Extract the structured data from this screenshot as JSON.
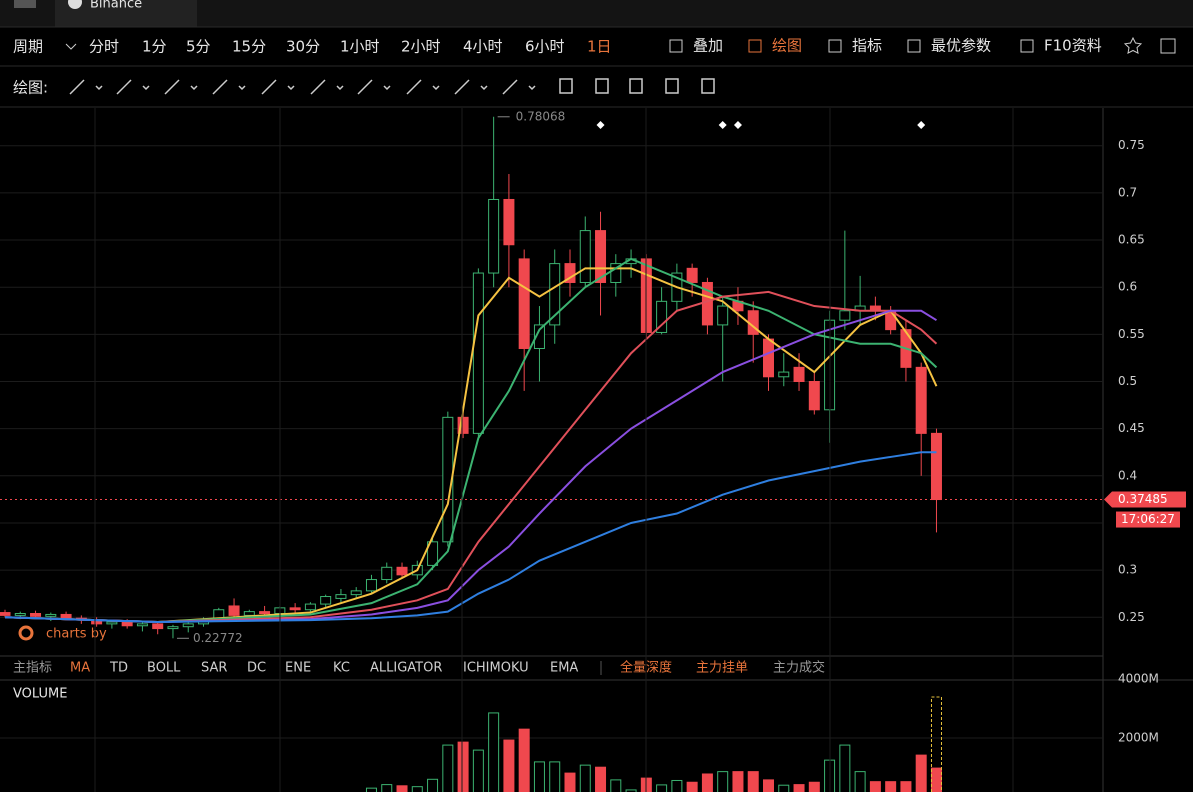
{
  "tab": {
    "name": "Binance"
  },
  "toolbar": {
    "period_label": "周期",
    "periods": [
      "分时",
      "1分",
      "5分",
      "15分",
      "30分",
      "1小时",
      "2小时",
      "4小时",
      "6小时",
      "1日"
    ],
    "tools": [
      "叠加",
      "绘图",
      "指标",
      "最优参数",
      "F10资料"
    ]
  },
  "drawing_bar": {
    "label": "绘图:"
  },
  "indicator_bar": {
    "items": [
      "主指标",
      "MA",
      "TD",
      "BOLL",
      "SAR",
      "DC",
      "ENE",
      "KC",
      "ALLIGATOR",
      "ICHIMOKU",
      "EMA",
      "全量深度",
      "主力挂单",
      "主力成交"
    ]
  },
  "watermark": "charts by",
  "chart_data": [
    {
      "type": "candlestick",
      "up_color": "#3cb371",
      "down_color": "#f0484e",
      "ylim": [
        0.21,
        0.79
      ],
      "yticks": [
        0.25,
        0.3,
        0.35,
        0.4,
        0.45,
        0.5,
        0.55,
        0.6,
        0.65,
        0.7,
        0.75
      ],
      "candles": [
        [
          0.255,
          0.258,
          0.25,
          0.252
        ],
        [
          0.252,
          0.256,
          0.248,
          0.254
        ],
        [
          0.254,
          0.257,
          0.249,
          0.251
        ],
        [
          0.251,
          0.255,
          0.246,
          0.253
        ],
        [
          0.253,
          0.256,
          0.247,
          0.249
        ],
        [
          0.249,
          0.252,
          0.243,
          0.247
        ],
        [
          0.247,
          0.25,
          0.24,
          0.243
        ],
        [
          0.243,
          0.247,
          0.238,
          0.245
        ],
        [
          0.245,
          0.248,
          0.238,
          0.241
        ],
        [
          0.241,
          0.245,
          0.235,
          0.243
        ],
        [
          0.243,
          0.246,
          0.232,
          0.238
        ],
        [
          0.238,
          0.242,
          0.22772,
          0.24
        ],
        [
          0.24,
          0.245,
          0.234,
          0.243
        ],
        [
          0.243,
          0.25,
          0.24,
          0.248
        ],
        [
          0.248,
          0.26,
          0.245,
          0.258
        ],
        [
          0.262,
          0.27,
          0.25,
          0.252
        ],
        [
          0.252,
          0.258,
          0.248,
          0.256
        ],
        [
          0.256,
          0.262,
          0.252,
          0.254
        ],
        [
          0.254,
          0.262,
          0.25,
          0.26
        ],
        [
          0.26,
          0.265,
          0.255,
          0.258
        ],
        [
          0.258,
          0.266,
          0.255,
          0.264
        ],
        [
          0.264,
          0.274,
          0.26,
          0.272
        ],
        [
          0.27,
          0.28,
          0.265,
          0.274
        ],
        [
          0.274,
          0.282,
          0.27,
          0.278
        ],
        [
          0.278,
          0.295,
          0.275,
          0.29
        ],
        [
          0.29,
          0.308,
          0.286,
          0.303
        ],
        [
          0.303,
          0.308,
          0.292,
          0.295
        ],
        [
          0.295,
          0.31,
          0.29,
          0.305
        ],
        [
          0.305,
          0.335,
          0.3,
          0.33
        ],
        [
          0.33,
          0.468,
          0.325,
          0.462
        ],
        [
          0.462,
          0.47,
          0.44,
          0.445
        ],
        [
          0.445,
          0.62,
          0.44,
          0.615
        ],
        [
          0.615,
          0.78068,
          0.6,
          0.693
        ],
        [
          0.693,
          0.72,
          0.6,
          0.645
        ],
        [
          0.63,
          0.64,
          0.49,
          0.535
        ],
        [
          0.535,
          0.58,
          0.5,
          0.56
        ],
        [
          0.56,
          0.64,
          0.54,
          0.625
        ],
        [
          0.625,
          0.64,
          0.59,
          0.605
        ],
        [
          0.605,
          0.675,
          0.6,
          0.66
        ],
        [
          0.66,
          0.68,
          0.57,
          0.605
        ],
        [
          0.605,
          0.635,
          0.59,
          0.625
        ],
        [
          0.625,
          0.64,
          0.61,
          0.63
        ],
        [
          0.63,
          0.635,
          0.545,
          0.552
        ],
        [
          0.552,
          0.6,
          0.55,
          0.585
        ],
        [
          0.585,
          0.625,
          0.575,
          0.615
        ],
        [
          0.62,
          0.625,
          0.59,
          0.605
        ],
        [
          0.605,
          0.61,
          0.55,
          0.56
        ],
        [
          0.56,
          0.59,
          0.5,
          0.58
        ],
        [
          0.585,
          0.6,
          0.56,
          0.575
        ],
        [
          0.575,
          0.585,
          0.52,
          0.55
        ],
        [
          0.545,
          0.55,
          0.49,
          0.505
        ],
        [
          0.505,
          0.53,
          0.495,
          0.51
        ],
        [
          0.515,
          0.53,
          0.49,
          0.5
        ],
        [
          0.5,
          0.51,
          0.465,
          0.47
        ],
        [
          0.47,
          0.575,
          0.435,
          0.565
        ],
        [
          0.565,
          0.66,
          0.555,
          0.575
        ],
        [
          0.575,
          0.612,
          0.56,
          0.58
        ],
        [
          0.58,
          0.59,
          0.565,
          0.575
        ],
        [
          0.575,
          0.58,
          0.55,
          0.555
        ],
        [
          0.555,
          0.565,
          0.5,
          0.515
        ],
        [
          0.515,
          0.52,
          0.4,
          0.445
        ],
        [
          0.445,
          0.45,
          0.34,
          0.37485
        ]
      ],
      "markers_at": [
        39,
        47,
        48,
        60
      ],
      "max": {
        "index": 32,
        "value": 0.78068
      },
      "min": {
        "index": 11,
        "value": 0.22772
      },
      "last": {
        "value": 0.37485,
        "time": "17:06:27"
      },
      "lines": {
        "x": [
          0,
          10,
          20,
          24,
          27,
          29,
          31,
          33,
          35,
          38,
          41,
          44,
          47,
          50,
          53,
          56,
          58,
          60,
          61
        ],
        "series": [
          {
            "color": "#f5c242",
            "values": [
              0.25,
              0.245,
              0.255,
              0.275,
              0.3,
              0.37,
              0.57,
              0.61,
              0.59,
              0.62,
              0.62,
              0.6,
              0.585,
              0.545,
              0.51,
              0.56,
              0.575,
              0.53,
              0.495
            ]
          },
          {
            "color": "#3cb371",
            "values": [
              0.25,
              0.245,
              0.253,
              0.265,
              0.285,
              0.32,
              0.44,
              0.49,
              0.555,
              0.6,
              0.63,
              0.61,
              0.59,
              0.575,
              0.55,
              0.54,
              0.54,
              0.53,
              0.515
            ]
          },
          {
            "color": "#e0505a",
            "values": [
              0.25,
              0.245,
              0.25,
              0.258,
              0.268,
              0.28,
              0.33,
              0.37,
              0.41,
              0.47,
              0.53,
              0.575,
              0.59,
              0.595,
              0.58,
              0.575,
              0.575,
              0.555,
              0.54
            ]
          },
          {
            "color": "#8a4fe0",
            "values": [
              0.25,
              0.245,
              0.248,
              0.253,
              0.26,
              0.268,
              0.3,
              0.325,
              0.36,
              0.41,
              0.45,
              0.48,
              0.51,
              0.53,
              0.55,
              0.565,
              0.575,
              0.575,
              0.565
            ]
          },
          {
            "color": "#2f7fe0",
            "values": [
              0.25,
              0.245,
              0.247,
              0.249,
              0.252,
              0.256,
              0.275,
              0.29,
              0.31,
              0.33,
              0.35,
              0.36,
              0.38,
              0.395,
              0.405,
              0.415,
              0.42,
              0.425,
              0.425
            ]
          }
        ]
      }
    },
    {
      "type": "bar",
      "title": "VOLUME",
      "ylim": [
        0,
        4000
      ],
      "yticks": [
        {
          "value": 2000,
          "label": "2000M"
        },
        {
          "value": 4000,
          "label": "4000M"
        }
      ],
      "values": [
        40,
        35,
        30,
        45,
        30,
        35,
        40,
        30,
        25,
        35,
        30,
        40,
        45,
        50,
        90,
        110,
        60,
        55,
        60,
        50,
        70,
        120,
        110,
        100,
        300,
        420,
        380,
        350,
        600,
        1760,
        1860,
        1590,
        2850,
        1930,
        2300,
        1190,
        1190,
        810,
        1080,
        1010,
        580,
        240,
        640,
        410,
        560,
        500,
        780,
        860,
        860,
        860,
        580,
        400,
        420,
        500,
        1250,
        1760,
        860,
        520,
        520,
        520,
        1420,
        980
      ]
    }
  ]
}
